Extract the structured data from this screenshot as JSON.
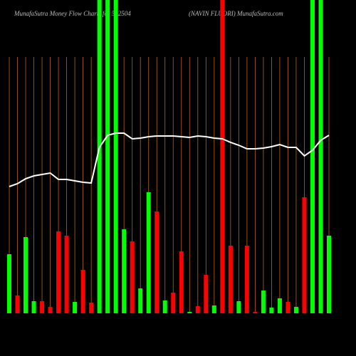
{
  "chart_data": {
    "type": "bar",
    "title": "MunafaSutra  Money Flow  Charts for 532504",
    "subtitle": "(NAVIN  FLUORI) MunafaSutra.com",
    "values": [
      83,
      25,
      107,
      17,
      17,
      9,
      115,
      109,
      16,
      61,
      15,
      440,
      440,
      440,
      118,
      101,
      35,
      170,
      143,
      18,
      29,
      87,
      2,
      10,
      54,
      11,
      440,
      95,
      17,
      95,
      2,
      32,
      8,
      21,
      16,
      9,
      163,
      440,
      440,
      109
    ],
    "colors": [
      "#00ff00",
      "#ff0000",
      "#00ff00",
      "#00ff00",
      "#ff0000",
      "#ff0000",
      "#ff0000",
      "#ff0000",
      "#00ff00",
      "#ff0000",
      "#ff0000",
      "#00ff00",
      "#00ff00",
      "#00ff00",
      "#00ff00",
      "#ff0000",
      "#00ff00",
      "#00ff00",
      "#ff0000",
      "#00ff00",
      "#ff0000",
      "#ff0000",
      "#00ff00",
      "#ff0000",
      "#ff0000",
      "#00ff00",
      "#ff0000",
      "#ff0000",
      "#00ff00",
      "#ff0000",
      "#ff0000",
      "#00ff00",
      "#00ff00",
      "#00ff00",
      "#ff0000",
      "#00ff00",
      "#ff0000",
      "#00ff00",
      "#00ff00",
      "#00ff00"
    ],
    "line": {
      "color": "#ffffff",
      "values": [
        178,
        182,
        189,
        193,
        195,
        197,
        188,
        188,
        186,
        184,
        183,
        233,
        250,
        253,
        253,
        245,
        246,
        248,
        249,
        249,
        249,
        248,
        247,
        249,
        248,
        246,
        245,
        240,
        236,
        231,
        231,
        232,
        234,
        237,
        233,
        233,
        221,
        229,
        243,
        250
      ]
    },
    "ylim": [
      0,
      440
    ],
    "grid_color": "#b5651d"
  }
}
